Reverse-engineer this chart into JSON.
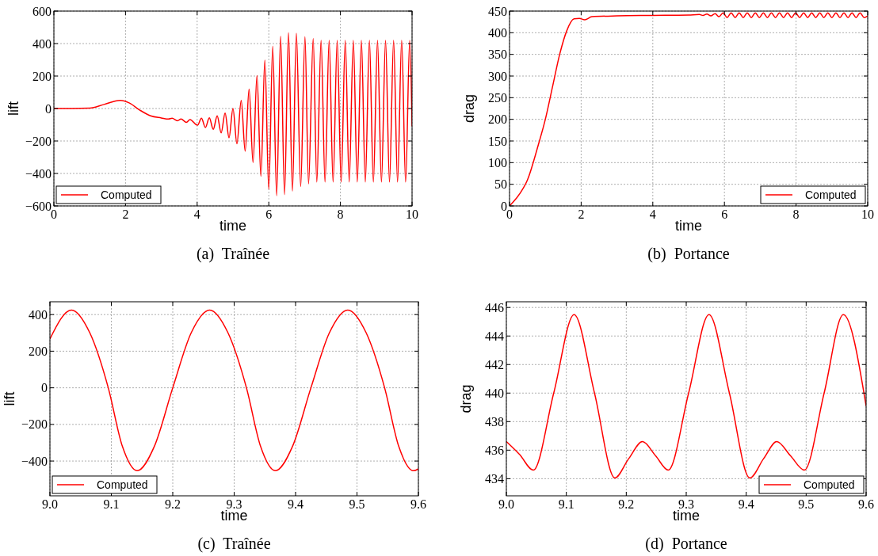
{
  "chart_data": [
    {
      "type": "line",
      "xlabel": "time",
      "ylabel": "lift",
      "annotations": [
        "(a)  Traînée"
      ],
      "xlim": [
        0,
        10
      ],
      "ylim": [
        -600,
        600
      ],
      "xticks": [
        0,
        2,
        4,
        6,
        8,
        10
      ],
      "yticks": [
        {
          "value": -600,
          "label": "−600"
        },
        {
          "value": -400,
          "label": "−400"
        },
        {
          "value": -200,
          "label": "−200"
        },
        0,
        200,
        400,
        600
      ],
      "grid": true,
      "legend": "bottom left",
      "line_style": "solid",
      "marker": "none",
      "series": [
        {
          "name": "Computed",
          "color": "#ff0000",
          "x": [
            0,
            0.5,
            1,
            1.4,
            1.85,
            2.1,
            2.4,
            2.7,
            3,
            3.2,
            3.3,
            3.45,
            3.55,
            3.7,
            3.8,
            4.01,
            4.12,
            4.23,
            4.34,
            4.45,
            4.56,
            4.67,
            4.78,
            4.89,
            5,
            5.11,
            5.23,
            5.34,
            5.45,
            5.56,
            5.67,
            5.78,
            5.89,
            6,
            6.11,
            6.22,
            6.33,
            6.44,
            6.55,
            6.66,
            6.77,
            6.89,
            7.01,
            7.11,
            7.24,
            7.34,
            7.46,
            7.57,
            7.685,
            7.795,
            7.91,
            8.02,
            8.135,
            8.245,
            8.36,
            8.47,
            8.585,
            8.695,
            8.81,
            8.92,
            9.035,
            9.145,
            9.26,
            9.37,
            9.485,
            9.595,
            9.71,
            9.82,
            9.935,
            10
          ],
          "values": [
            0,
            0,
            2,
            25,
            50,
            35,
            -10,
            -45,
            -58,
            -65,
            -60,
            -75,
            -65,
            -85,
            -68,
            -103,
            -60,
            -117,
            -57,
            -128,
            -45,
            -150,
            -28,
            -180,
            0,
            -217,
            50,
            -263,
            120,
            -333,
            203,
            -417,
            297,
            -497,
            383,
            -537,
            445,
            -530,
            467,
            -508,
            463,
            -480,
            442,
            -463,
            430,
            -453,
            420,
            -453,
            420,
            -453,
            420,
            -453,
            420,
            -453,
            420,
            -453,
            420,
            -453,
            420,
            -453,
            420,
            -453,
            420,
            -453,
            420,
            -453,
            420,
            -453,
            420,
            -110
          ]
        }
      ]
    },
    {
      "type": "line",
      "xlabel": "time",
      "ylabel": "drag",
      "annotations": [
        "(b)  Portance"
      ],
      "xlim": [
        0,
        10
      ],
      "ylim": [
        0,
        450
      ],
      "xticks": [
        0,
        2,
        4,
        6,
        8,
        10
      ],
      "yticks": [
        0,
        50,
        100,
        150,
        200,
        250,
        300,
        350,
        400,
        450
      ],
      "grid": true,
      "legend": "bottom right",
      "line_style": "solid",
      "marker": "none",
      "series": [
        {
          "name": "Computed",
          "color": "#ff0000",
          "x": [
            0,
            0.3,
            0.5,
            0.8,
            1,
            1.2,
            1.4,
            1.6,
            1.8,
            1.95,
            2.1,
            2.3,
            3,
            4,
            5,
            5.3,
            5.4,
            5.51,
            5.62,
            5.74,
            5.85,
            5.962,
            6.075,
            6.187,
            6.3,
            6.412,
            6.525,
            6.637,
            6.75,
            6.862,
            6.975,
            7.087,
            7.2,
            7.312,
            7.425,
            7.537,
            7.65,
            7.762,
            7.875,
            7.987,
            8.1,
            8.212,
            8.325,
            8.437,
            8.55,
            8.662,
            8.775,
            8.887,
            9,
            9.112,
            9.225,
            9.337,
            9.45,
            9.562,
            9.675,
            9.787,
            9.9,
            10
          ],
          "values": [
            0,
            30,
            60,
            140,
            200,
            275,
            350,
            405,
            432,
            433,
            430,
            437,
            439,
            440,
            441,
            442,
            440,
            443,
            439,
            444,
            437,
            446,
            435,
            446,
            435,
            446,
            435,
            446,
            435,
            446,
            435,
            446,
            435,
            446,
            435,
            446,
            435,
            446,
            435,
            446,
            435,
            446,
            435,
            446,
            435,
            446,
            435,
            446,
            435,
            446,
            435,
            446,
            435,
            446,
            435,
            446,
            435,
            439
          ]
        }
      ]
    },
    {
      "type": "line",
      "xlabel": "time",
      "ylabel": "lift",
      "annotations": [
        "(c)  Traînée"
      ],
      "xlim": [
        9,
        9.6
      ],
      "ylim": [
        -590,
        470
      ],
      "xticks": [
        {
          "value": 9,
          "label": "9.0"
        },
        9.1,
        9.2,
        9.3,
        9.4,
        9.5,
        9.6
      ],
      "yticks": [
        {
          "value": -400,
          "label": "−400"
        },
        {
          "value": -200,
          "label": "−200"
        },
        0,
        200,
        400
      ],
      "grid": true,
      "legend": "bottom left",
      "line_style": "solid",
      "marker": "none",
      "series": [
        {
          "name": "Computed",
          "color": "#ff0000",
          "x": [
            9,
            9.035,
            9.065,
            9.095,
            9.118,
            9.142,
            9.17,
            9.2,
            9.23,
            9.26,
            9.29,
            9.32,
            9.343,
            9.367,
            9.395,
            9.425,
            9.455,
            9.485,
            9.515,
            9.545,
            9.568,
            9.592,
            9.6
          ],
          "values": [
            267,
            425,
            300,
            0,
            -320,
            -453,
            -320,
            0,
            300,
            425,
            300,
            0,
            -320,
            -453,
            -320,
            0,
            300,
            425,
            300,
            0,
            -320,
            -453,
            -443
          ]
        }
      ]
    },
    {
      "type": "line",
      "xlabel": "time",
      "ylabel": "drag",
      "annotations": [
        "(d)  Portance"
      ],
      "xlim": [
        9,
        9.6
      ],
      "ylim": [
        432.8,
        446.4
      ],
      "xticks": [
        {
          "value": 9,
          "label": "9.0"
        },
        9.1,
        9.2,
        9.3,
        9.4,
        9.5,
        9.6
      ],
      "yticks": [
        434,
        436,
        438,
        440,
        442,
        444,
        446
      ],
      "grid": true,
      "legend": "bottom right",
      "line_style": "solid",
      "marker": "none",
      "series": [
        {
          "name": "Computed",
          "color": "#ff0000",
          "x": [
            9,
            9.022,
            9.045,
            9.079,
            9.113,
            9.147,
            9.181,
            9.204,
            9.227,
            9.249,
            9.27,
            9.304,
            9.338,
            9.372,
            9.406,
            9.429,
            9.451,
            9.474,
            9.497,
            9.53,
            9.562,
            9.6
          ],
          "values": [
            436.6,
            435.7,
            434.6,
            440,
            445.5,
            440,
            434.05,
            435.4,
            436.6,
            435.6,
            434.6,
            440,
            445.5,
            440,
            434.05,
            435.4,
            436.6,
            435.6,
            434.6,
            440,
            445.5,
            439.1
          ]
        }
      ]
    }
  ]
}
